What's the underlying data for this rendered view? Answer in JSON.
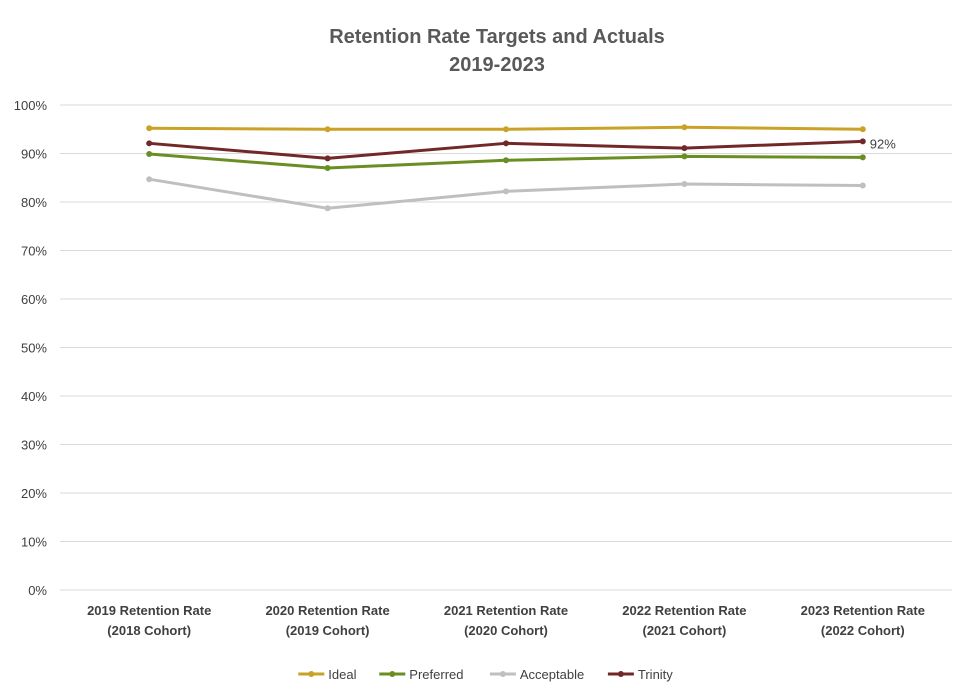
{
  "chart_data": {
    "type": "line",
    "title": "Retention Rate Targets and Actuals",
    "subtitle": "2019-2023",
    "xlabel": "",
    "ylabel": "",
    "ylim": [
      0,
      100
    ],
    "y_ticks": [
      "0%",
      "10%",
      "20%",
      "30%",
      "40%",
      "50%",
      "60%",
      "70%",
      "80%",
      "90%",
      "100%"
    ],
    "grid": true,
    "legend_position": "bottom",
    "categories": [
      [
        "2019 Retention Rate",
        "(2018 Cohort)"
      ],
      [
        "2020 Retention Rate",
        "(2019 Cohort)"
      ],
      [
        "2021 Retention Rate",
        "(2020 Cohort)"
      ],
      [
        "2022 Retention Rate",
        "(2021 Cohort)"
      ],
      [
        "2023 Retention Rate",
        "(2022 Cohort)"
      ]
    ],
    "series": [
      {
        "name": "Ideal",
        "color": "#C9A227",
        "values": [
          95.2,
          95.0,
          95.0,
          95.4,
          95.0
        ]
      },
      {
        "name": "Preferred",
        "color": "#6B8E23",
        "values": [
          89.9,
          87.0,
          88.6,
          89.4,
          89.2
        ]
      },
      {
        "name": "Acceptable",
        "color": "#BFBFBF",
        "values": [
          84.7,
          78.7,
          82.2,
          83.7,
          83.4
        ]
      },
      {
        "name": "Trinity",
        "color": "#722828",
        "values": [
          92.1,
          89.0,
          92.1,
          91.1,
          92.5
        ]
      }
    ],
    "annotations": [
      {
        "series": "Trinity",
        "index": 4,
        "text": "92%"
      }
    ]
  }
}
